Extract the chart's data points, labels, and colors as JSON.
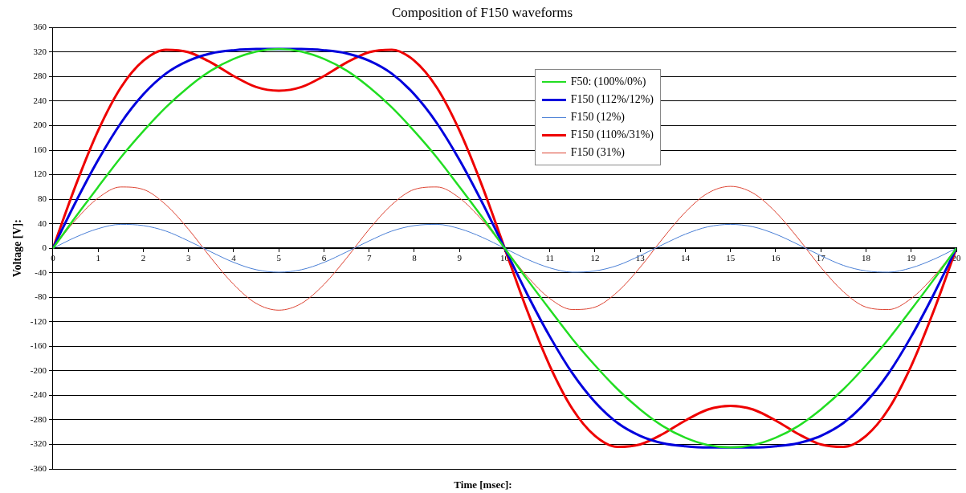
{
  "chart_data": {
    "type": "line",
    "title": "Composition of F150 waveforms",
    "xlabel": "Time [msec]:",
    "ylabel": "Voltage [V]:",
    "x": [
      0,
      0.5,
      1,
      1.5,
      2,
      2.5,
      3,
      3.5,
      4,
      4.5,
      5,
      5.5,
      6,
      6.5,
      7,
      7.5,
      8,
      8.5,
      9,
      9.5,
      10,
      10.5,
      11,
      11.5,
      12,
      12.5,
      13,
      13.5,
      14,
      14.5,
      15,
      15.5,
      16,
      16.5,
      17,
      17.5,
      18,
      18.5,
      19,
      19.5,
      20
    ],
    "series": [
      {
        "name": "F50: (100%/0%)",
        "color": "#22dd22",
        "values": [
          0,
          51,
          100,
          148,
          191,
          230,
          263,
          290,
          309,
          321,
          325,
          321,
          309,
          290,
          263,
          230,
          191,
          148,
          100,
          51,
          0,
          -51,
          -100,
          -148,
          -191,
          -230,
          -263,
          -290,
          -309,
          -321,
          -325,
          -321,
          -309,
          -290,
          -263,
          -230,
          -191,
          -148,
          -100,
          -51,
          0
        ]
      },
      {
        "name": "F150 (112%/12%)",
        "color": "#0000dd",
        "values": [
          0,
          75,
          144,
          204,
          251,
          285,
          306,
          318,
          323,
          325,
          325,
          325,
          323,
          318,
          306,
          285,
          251,
          204,
          144,
          75,
          0,
          -75,
          -144,
          -204,
          -251,
          -285,
          -306,
          -318,
          -323,
          -325,
          -325,
          -325,
          -323,
          -318,
          -306,
          -285,
          -251,
          -204,
          -144,
          -75,
          0
        ]
      },
      {
        "name": "F150 (12%)",
        "color": "#4a7fd6",
        "values": [
          0,
          18,
          32,
          39,
          37,
          28,
          12,
          -6,
          -23,
          -35,
          -39,
          -35,
          -23,
          -6,
          12,
          28,
          37,
          39,
          32,
          18,
          0,
          -18,
          -32,
          -39,
          -37,
          -28,
          -12,
          6,
          23,
          35,
          39,
          35,
          23,
          6,
          -12,
          -28,
          -37,
          -39,
          -32,
          -18,
          0
        ]
      },
      {
        "name": "F150 (110%/31%)",
        "color": "#ee0000",
        "values": [
          0,
          102,
          192,
          262,
          306,
          324,
          320,
          303,
          281,
          263,
          257,
          263,
          281,
          303,
          320,
          324,
          306,
          262,
          192,
          102,
          0,
          -102,
          -192,
          -262,
          -306,
          -324,
          -320,
          -303,
          -281,
          -263,
          -257,
          -263,
          -281,
          -303,
          -320,
          -324,
          -306,
          -262,
          -192,
          -102,
          0
        ]
      },
      {
        "name": "F150 (31%)",
        "color": "#dd4433",
        "values": [
          0,
          46,
          82,
          100,
          96,
          71,
          31,
          -16,
          -59,
          -90,
          -101,
          -90,
          -59,
          -16,
          31,
          71,
          96,
          100,
          82,
          46,
          0,
          -46,
          -82,
          -100,
          -96,
          -71,
          -31,
          16,
          59,
          90,
          101,
          90,
          59,
          16,
          -31,
          -71,
          -96,
          -100,
          -82,
          -46,
          0
        ]
      }
    ],
    "xlim": [
      0,
      20
    ],
    "xticks": [
      0,
      1,
      2,
      3,
      4,
      5,
      6,
      7,
      8,
      9,
      10,
      11,
      12,
      13,
      14,
      15,
      16,
      17,
      18,
      19,
      20
    ],
    "ylim": [
      -360,
      360
    ],
    "yticks": [
      -360,
      -320,
      -280,
      -240,
      -200,
      -160,
      -120,
      -80,
      -40,
      0,
      40,
      80,
      120,
      160,
      200,
      240,
      280,
      320,
      360
    ],
    "grid": "y",
    "legend": "top right",
    "marker": "none",
    "line_style": "solid"
  }
}
